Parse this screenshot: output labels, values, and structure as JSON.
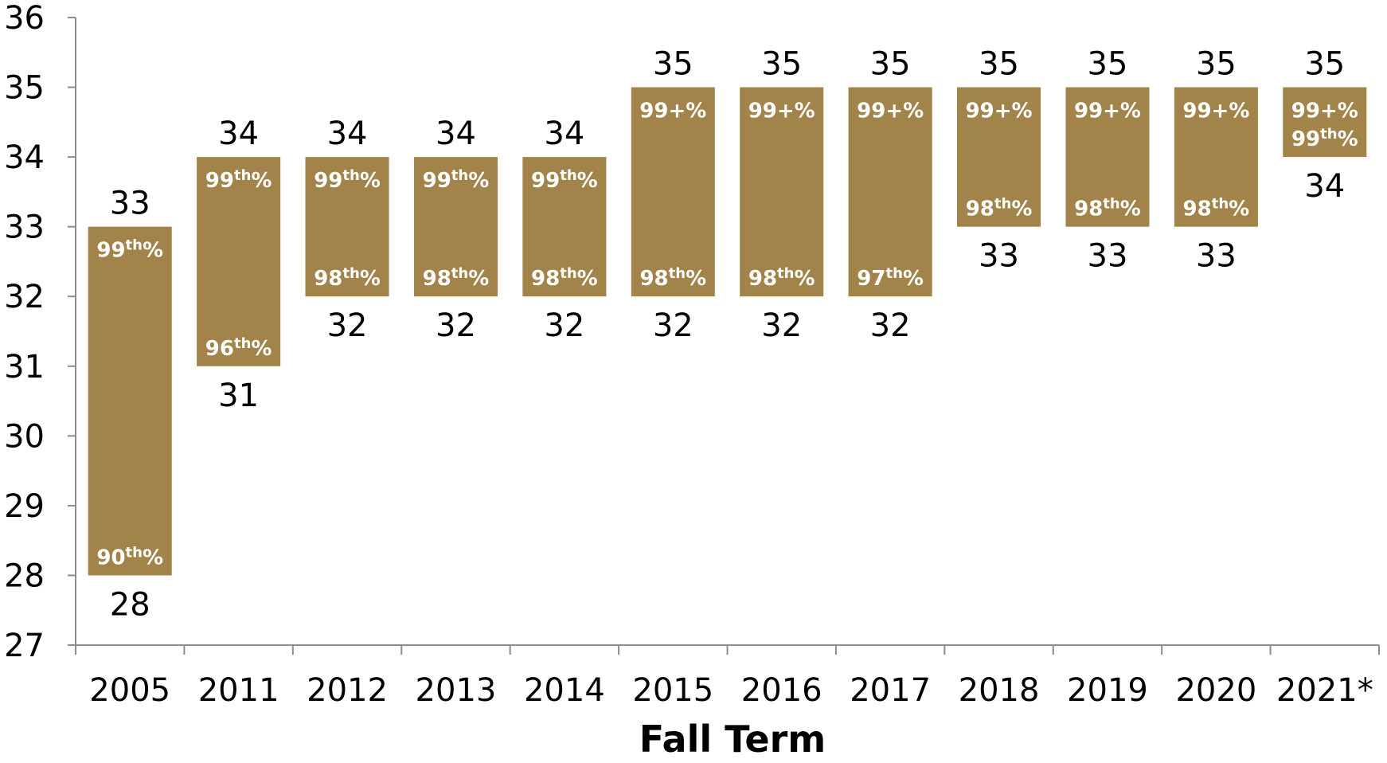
{
  "chart_data": {
    "type": "bar",
    "subtype": "floating-range",
    "xlabel": "Fall Term",
    "ylabel": "",
    "ylim": [
      27,
      36
    ],
    "yticks": [
      "27",
      "28",
      "29",
      "30",
      "31",
      "32",
      "33",
      "34",
      "35",
      "36"
    ],
    "grid": false,
    "legend": "none",
    "bar_color": "#A2844A",
    "categories": [
      "2005",
      "2011",
      "2012",
      "2013",
      "2014",
      "2015",
      "2016",
      "2017",
      "2018",
      "2019",
      "2020",
      "2021*"
    ],
    "low": [
      28,
      31,
      32,
      32,
      32,
      32,
      32,
      32,
      33,
      33,
      33,
      34
    ],
    "high": [
      33,
      34,
      34,
      34,
      34,
      35,
      35,
      35,
      35,
      35,
      35,
      35
    ],
    "low_labels": [
      "28",
      "31",
      "32",
      "32",
      "32",
      "32",
      "32",
      "32",
      "33",
      "33",
      "33",
      "34"
    ],
    "high_labels": [
      "33",
      "34",
      "34",
      "34",
      "34",
      "35",
      "35",
      "35",
      "35",
      "35",
      "35",
      "35"
    ],
    "low_percentiles": [
      {
        "num": "90",
        "sup": "th",
        "pct": "%"
      },
      {
        "num": "96",
        "sup": "th",
        "pct": "%"
      },
      {
        "num": "98",
        "sup": "th",
        "pct": "%"
      },
      {
        "num": "98",
        "sup": "th",
        "pct": "%"
      },
      {
        "num": "98",
        "sup": "th",
        "pct": "%"
      },
      {
        "num": "98",
        "sup": "th",
        "pct": "%"
      },
      {
        "num": "98",
        "sup": "th",
        "pct": "%"
      },
      {
        "num": "97",
        "sup": "th",
        "pct": "%"
      },
      {
        "num": "98",
        "sup": "th",
        "pct": "%"
      },
      {
        "num": "98",
        "sup": "th",
        "pct": "%"
      },
      {
        "num": "98",
        "sup": "th",
        "pct": "%"
      },
      {
        "num": "99",
        "sup": "th",
        "pct": "%"
      }
    ],
    "high_percentiles": [
      {
        "num": "99",
        "sup": "th",
        "pct": "%"
      },
      {
        "num": "99",
        "sup": "th",
        "pct": "%"
      },
      {
        "num": "99",
        "sup": "th",
        "pct": "%"
      },
      {
        "num": "99",
        "sup": "th",
        "pct": "%"
      },
      {
        "num": "99",
        "sup": "th",
        "pct": "%"
      },
      {
        "num": "99+",
        "sup": "",
        "pct": "%"
      },
      {
        "num": "99+",
        "sup": "",
        "pct": "%"
      },
      {
        "num": "99+",
        "sup": "",
        "pct": "%"
      },
      {
        "num": "99+",
        "sup": "",
        "pct": "%"
      },
      {
        "num": "99+",
        "sup": "",
        "pct": "%"
      },
      {
        "num": "99+",
        "sup": "",
        "pct": "%"
      },
      {
        "num": "99+",
        "sup": "",
        "pct": "%"
      }
    ]
  }
}
